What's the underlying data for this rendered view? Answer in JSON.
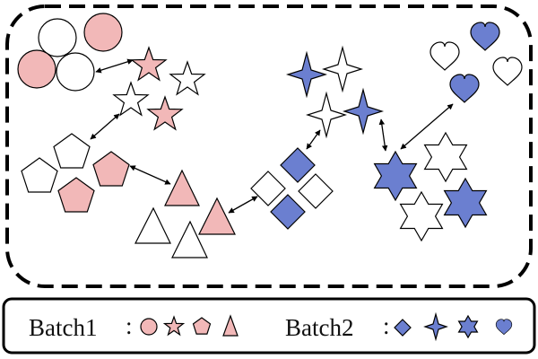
{
  "legend": {
    "batch1_label": "Batch1",
    "batch2_label": "Batch2",
    "separator": ":"
  },
  "colors": {
    "batch1_fill": "#f2b8b8",
    "batch2_fill": "#6b7fd0",
    "empty_fill": "#ffffff",
    "stroke": "#000000"
  },
  "batch1_shapes": [
    "circle-icon",
    "star-icon",
    "pentagon-icon",
    "triangle-icon"
  ],
  "batch2_shapes": [
    "diamond-icon",
    "four-point-star-icon",
    "six-point-star-icon",
    "heart-icon"
  ]
}
